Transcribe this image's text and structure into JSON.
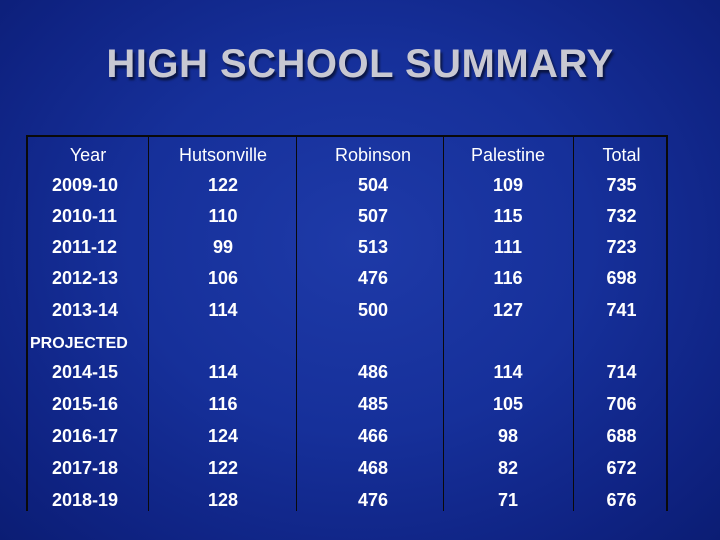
{
  "title": "HIGH SCHOOL SUMMARY",
  "headers": [
    "Year",
    "Hutsonville",
    "Robinson",
    "Palestine",
    "Total"
  ],
  "projected_label": "PROJECTED",
  "rows": [
    [
      "2009-10",
      "122",
      "504",
      "109",
      "735"
    ],
    [
      "2010-11",
      "110",
      "507",
      "115",
      "732"
    ],
    [
      "2011-12",
      "99",
      "513",
      "111",
      "723"
    ],
    [
      "2012-13",
      "106",
      "476",
      "116",
      "698"
    ],
    [
      "2013-14",
      "114",
      "500",
      "127",
      "741"
    ]
  ],
  "projected_rows": [
    [
      "2014-15",
      "114",
      "486",
      "114",
      "714"
    ],
    [
      "2015-16",
      "116",
      "485",
      "105",
      "706"
    ],
    [
      "2016-17",
      "124",
      "466",
      "98",
      "688"
    ],
    [
      "2017-18",
      "122",
      "468",
      "82",
      "672"
    ],
    [
      "2018-19",
      "128",
      "476",
      "71",
      "676"
    ]
  ]
}
